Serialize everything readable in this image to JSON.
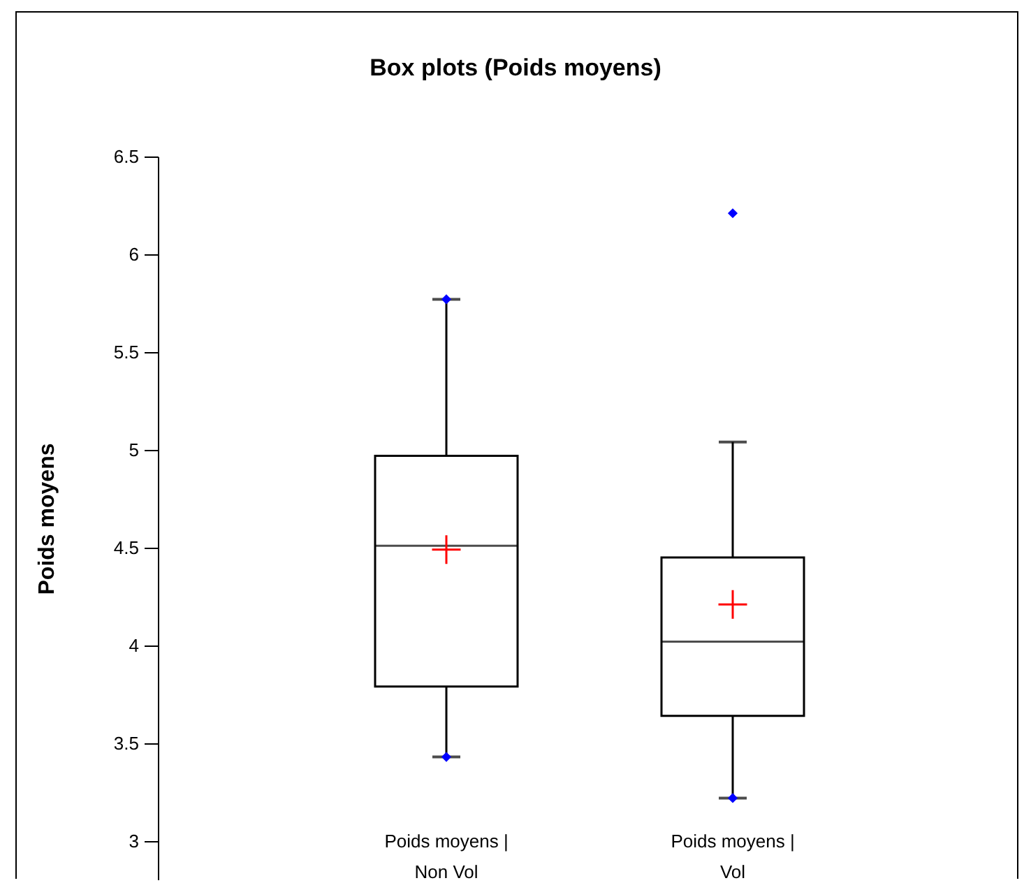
{
  "chart_data": {
    "type": "box",
    "title": "Box plots (Poids moyens)",
    "ylabel": "Poids moyens",
    "categories": [
      "Poids moyens | Non Vol",
      "Poids moyens | Vol"
    ],
    "boxes": [
      {
        "low": 3.43,
        "q1": 3.79,
        "median": 4.51,
        "q3": 4.97,
        "high": 5.77,
        "mean": 4.49
      },
      {
        "low": 3.22,
        "q1": 3.64,
        "median": 4.02,
        "q3": 4.45,
        "high": 5.04,
        "mean": 4.21
      }
    ],
    "series": [
      {
        "type": "scatter",
        "color": "#0000ff",
        "marker": "diamond",
        "x": [
          "Poids moyens | Non Vol",
          "Poids moyens | Non Vol",
          "Poids moyens | Vol",
          "Poids moyens | Vol"
        ],
        "values": [
          3.43,
          5.77,
          3.22,
          6.21
        ]
      }
    ],
    "ylim": [
      2.8,
      6.5
    ],
    "yticks": [
      3,
      3.5,
      4,
      4.5,
      5,
      5.5,
      6,
      6.5
    ],
    "legend": false,
    "grid": false
  }
}
